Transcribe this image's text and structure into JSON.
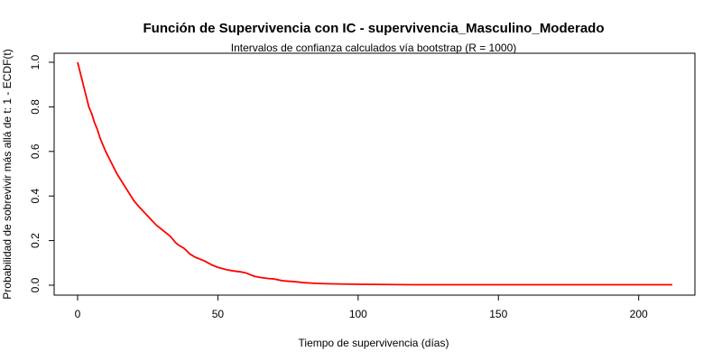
{
  "chart_data": {
    "type": "line",
    "title": "Función de Supervivencia con IC - supervivencia_Masculino_Moderado",
    "subtitle": "Intervalos de confianza calculados vía bootstrap (R = 1000)",
    "xlabel": "Tiempo de supervivencia (días)",
    "ylabel": "Probabilidad de sobrevivir más allá de t: 1 - ECDF(t)",
    "xlim": [
      0,
      212
    ],
    "ylim": [
      0,
      1
    ],
    "x_ticks": [
      0,
      50,
      100,
      150,
      200
    ],
    "y_ticks": [
      0.0,
      0.2,
      0.4,
      0.6,
      0.8,
      1.0
    ],
    "x_tick_labels": [
      "0",
      "50",
      "100",
      "150",
      "200"
    ],
    "y_tick_labels": [
      "0.0",
      "0.2",
      "0.4",
      "0.6",
      "0.8",
      "1.0"
    ],
    "grid": false,
    "series": [
      {
        "color": "#ff0000",
        "x": [
          0,
          1,
          2,
          3,
          4,
          5,
          6,
          7,
          8,
          10,
          12,
          14,
          16,
          18,
          20,
          22,
          25,
          28,
          30,
          33,
          35,
          36,
          38,
          40,
          42,
          45,
          48,
          50,
          53,
          55,
          58,
          60,
          63,
          65,
          68,
          70,
          73,
          75,
          78,
          80,
          85,
          90,
          95,
          100,
          110,
          120,
          130,
          140,
          150,
          160,
          170,
          180,
          190,
          200,
          212
        ],
        "y": [
          1.0,
          0.95,
          0.9,
          0.85,
          0.8,
          0.77,
          0.73,
          0.7,
          0.66,
          0.6,
          0.55,
          0.5,
          0.46,
          0.42,
          0.38,
          0.35,
          0.31,
          0.27,
          0.25,
          0.22,
          0.19,
          0.18,
          0.165,
          0.14,
          0.125,
          0.11,
          0.09,
          0.08,
          0.07,
          0.065,
          0.06,
          0.055,
          0.04,
          0.035,
          0.03,
          0.028,
          0.02,
          0.018,
          0.015,
          0.012,
          0.008,
          0.006,
          0.005,
          0.004,
          0.003,
          0.002,
          0.002,
          0.002,
          0.002,
          0.002,
          0.002,
          0.002,
          0.002,
          0.002,
          0.002
        ]
      }
    ]
  }
}
